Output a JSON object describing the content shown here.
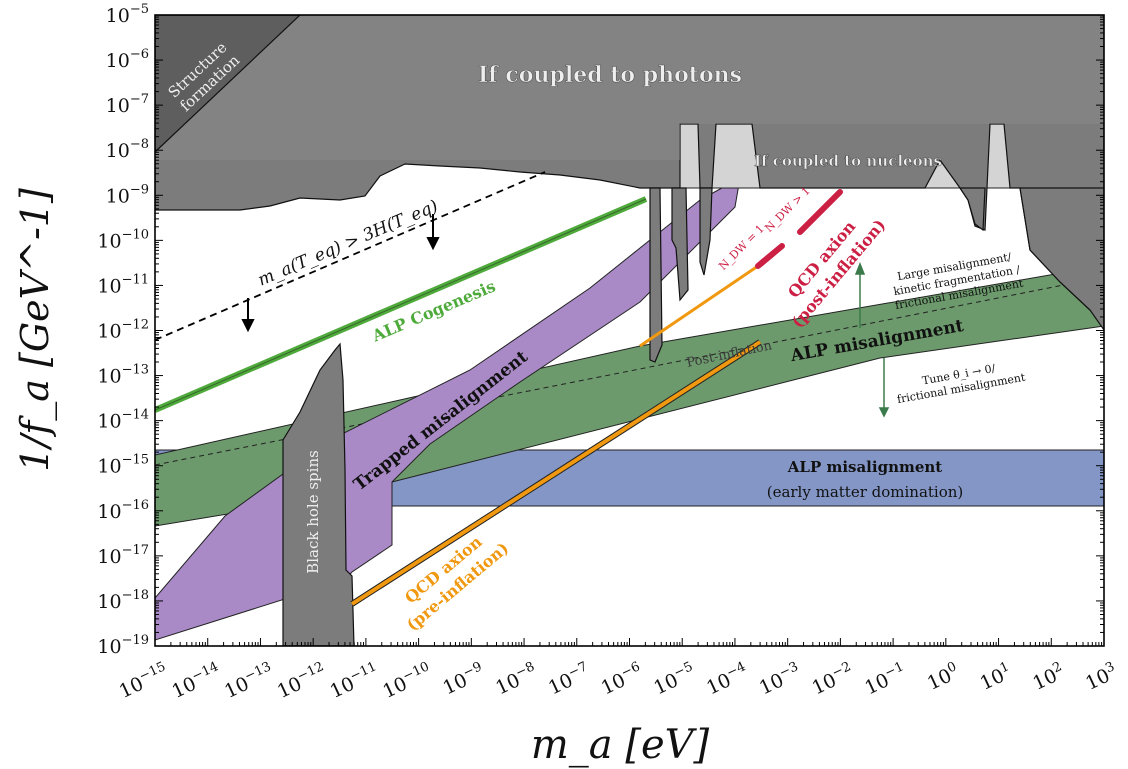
{
  "chart_data": {
    "type": "area",
    "xlabel": "m_a [eV]",
    "ylabel": "1/f_a [GeV^-1]",
    "xscale": "log",
    "yscale": "log",
    "xlim_log10": [
      -15,
      3
    ],
    "ylim_log10": [
      -19,
      -5
    ],
    "x_ticks_log10": [
      -15,
      -14,
      -13,
      -12,
      -11,
      -10,
      -9,
      -8,
      -7,
      -6,
      -5,
      -4,
      -3,
      -2,
      -1,
      0,
      1,
      2,
      3
    ],
    "y_ticks_log10": [
      -19,
      -18,
      -17,
      -16,
      -15,
      -14,
      -13,
      -12,
      -11,
      -10,
      -9,
      -8,
      -7,
      -6,
      -5
    ],
    "tick_base": "10",
    "grid": false,
    "colors": {
      "excluded": "#7c7c7c",
      "excluded_dark": "#5e5e5e",
      "nucleon": "#d4d4d4",
      "cogenesis": "#4eaa3a",
      "trapped": "#a98ac6",
      "alp_misalignment": "#6c9a6c",
      "early_matter": "#8396c6",
      "qcd_pre": "#f0980f",
      "qcd_post": "#cc1f44",
      "black_hole": "#7c7c7c"
    },
    "regions": [
      {
        "name": "Structure formation",
        "kind": "excluded"
      },
      {
        "name": "If coupled to photons",
        "kind": "excluded"
      },
      {
        "name": "If coupled to nucleons",
        "kind": "excluded"
      },
      {
        "name": "Black hole spins",
        "kind": "excluded"
      },
      {
        "name": "Trapped misalignment",
        "kind": "model"
      },
      {
        "name": "ALP misalignment",
        "kind": "model",
        "note": "Post-inflation"
      },
      {
        "name": "ALP misalignment (early matter domination)",
        "kind": "model"
      }
    ],
    "lines": [
      {
        "name": "ALP Cogenesis",
        "x_log10": [
          -15,
          -5.95
        ],
        "y_log10": [
          -13.8,
          -9.1
        ]
      },
      {
        "name": "m_a(T_eq) > 3H(T_eq)",
        "style": "dashed",
        "x_log10": [
          -15,
          -7.3
        ],
        "y_log10": [
          -12.2,
          -8.6
        ]
      },
      {
        "name": "QCD axion (pre-inflation)",
        "x_log10": [
          -11,
          -4.35
        ],
        "y_log10": [
          -18.0,
          -11.3
        ]
      },
      {
        "name": "QCD axion (post-inflation)",
        "x_log10": [
          -4.35,
          -2.0
        ],
        "y_log10": [
          -11.3,
          -8.95
        ]
      }
    ]
  },
  "labels": {
    "structure_formation_l1": "Structure",
    "structure_formation_l2": "formation",
    "photons": "If coupled to photons",
    "nucleons": "If coupled to nucleons",
    "teq_condition": "m_a(T_eq) > 3H(T_eq)",
    "alp_cogenesis": "ALP Cogenesis",
    "trapped": "Trapped misalignment",
    "black_hole": "Black hole spins",
    "qcd_pre_l1": "QCD axion",
    "qcd_pre_l2": "(pre-inflation)",
    "qcd_post_l1": "QCD axion",
    "qcd_post_l2": "(post-inflation)",
    "now_eq_1": "N_DW = 1",
    "now_gt_1": "N_DW > 1",
    "post_inflation": "Post-inflation",
    "alp_misalignment": "ALP misalignment",
    "early_matter_l1": "ALP misalignment",
    "early_matter_l2": "(early matter domination)",
    "large_mis_l1": "Large misalignment/",
    "large_mis_l2": "kinetic fragmentation /",
    "large_mis_l3": "frictional misalignment",
    "tune_l1": "Tune θ_i → 0/",
    "tune_l2": "frictional misalignment"
  }
}
